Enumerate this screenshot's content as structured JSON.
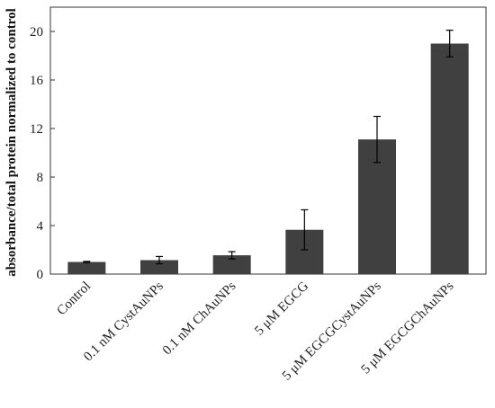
{
  "chart_data": {
    "type": "bar",
    "title": "",
    "xlabel": "",
    "ylabel": "absorbance/total protein normalized to control",
    "ylim": [
      0,
      22
    ],
    "yticks": [
      0,
      4,
      8,
      12,
      16,
      20
    ],
    "grid": false,
    "legend": "none",
    "bar_color": "#404040",
    "categories": [
      "Control",
      "0.1 nM CystAuNPs",
      "0.1 nM ChAuNPs",
      "5 μM EGCG",
      "5 μM EGCGCystAuNPs",
      "5 μM EGCGChAuNPs"
    ],
    "values": [
      1.0,
      1.15,
      1.55,
      3.65,
      11.1,
      19.0
    ],
    "errors": [
      0.05,
      0.3,
      0.3,
      1.65,
      1.9,
      1.1
    ]
  }
}
